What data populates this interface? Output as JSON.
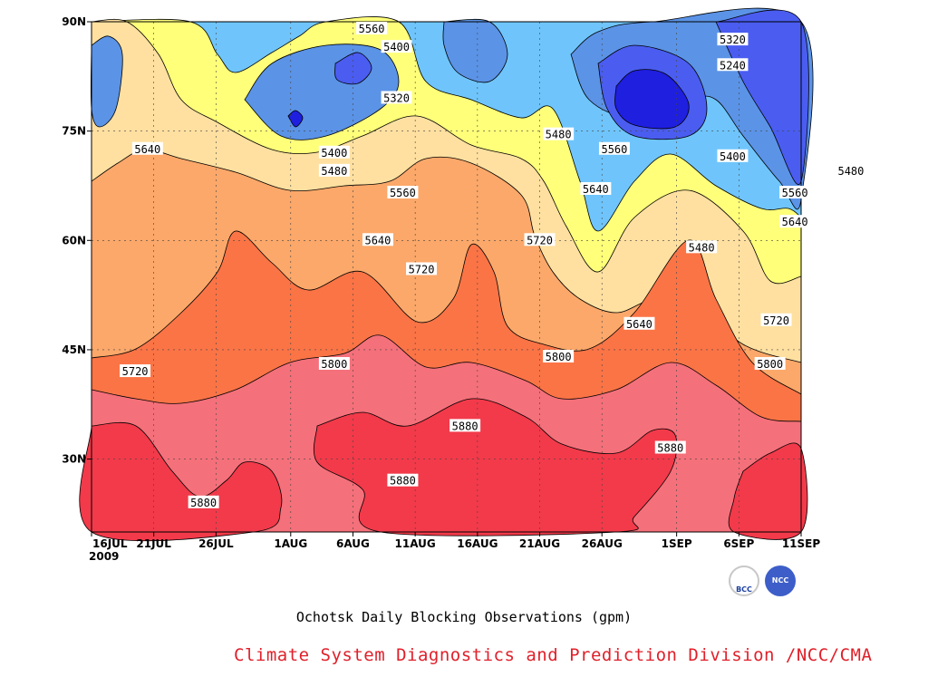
{
  "chart_data": {
    "type": "contour",
    "title": "Ochotsk Daily Blocking Observations (gpm)",
    "x_tick_labels": [
      "16JUL",
      "21JUL",
      "26JUL",
      "1AUG",
      "6AUG",
      "11AUG",
      "16AUG",
      "21AUG",
      "26AUG",
      "1SEP",
      "6SEP",
      "11SEP"
    ],
    "x_year_label": "2009",
    "y_tick_labels": [
      "90N",
      "75N",
      "60N",
      "45N",
      "30N"
    ],
    "x_range": [
      "2009-07-16",
      "2009-09-11"
    ],
    "y_range": [
      20,
      90
    ],
    "grid": true,
    "contour_levels": [
      5240,
      5320,
      5400,
      5480,
      5560,
      5640,
      5720,
      5800,
      5880
    ],
    "contour_labels": [
      {
        "text": "5560",
        "x": 22.5,
        "y": 89
      },
      {
        "text": "5400",
        "x": 24.5,
        "y": 86.5
      },
      {
        "text": "5320",
        "x": 24.5,
        "y": 79.5
      },
      {
        "text": "5400",
        "x": 19.5,
        "y": 72
      },
      {
        "text": "5480",
        "x": 19.5,
        "y": 69.5
      },
      {
        "text": "5560",
        "x": 25,
        "y": 66.5
      },
      {
        "text": "5640",
        "x": 4.5,
        "y": 72.5
      },
      {
        "text": "5640",
        "x": 23,
        "y": 60
      },
      {
        "text": "5720",
        "x": 26.5,
        "y": 56
      },
      {
        "text": "5720",
        "x": 36,
        "y": 60
      },
      {
        "text": "5480",
        "x": 37.5,
        "y": 74.5
      },
      {
        "text": "5560",
        "x": 42,
        "y": 72.5
      },
      {
        "text": "5640",
        "x": 40.5,
        "y": 67
      },
      {
        "text": "5320",
        "x": 51.5,
        "y": 87.5
      },
      {
        "text": "5240",
        "x": 51.5,
        "y": 84
      },
      {
        "text": "5400",
        "x": 51.5,
        "y": 71.5
      },
      {
        "text": "5480",
        "x": 61,
        "y": 69.5
      },
      {
        "text": "5560",
        "x": 56.5,
        "y": 66.5
      },
      {
        "text": "5640",
        "x": 56.5,
        "y": 62.5
      },
      {
        "text": "5480",
        "x": 49,
        "y": 59
      },
      {
        "text": "5640",
        "x": 44,
        "y": 48.5
      },
      {
        "text": "5720",
        "x": 55,
        "y": 49
      },
      {
        "text": "5720",
        "x": 3.5,
        "y": 42
      },
      {
        "text": "5800",
        "x": 19.5,
        "y": 43
      },
      {
        "text": "5800",
        "x": 37.5,
        "y": 44
      },
      {
        "text": "5800",
        "x": 54.5,
        "y": 43
      },
      {
        "text": "5880",
        "x": 30,
        "y": 34.5
      },
      {
        "text": "5880",
        "x": 25,
        "y": 27
      },
      {
        "text": "5880",
        "x": 46.5,
        "y": 31.5
      },
      {
        "text": "5880",
        "x": 9,
        "y": 24
      }
    ]
  },
  "band_colors": {
    "below_5240": "#1f1fe0",
    "5240_5320": "#4a5df0",
    "5320_5400": "#5b93e6",
    "5400_5480": "#6fc5fb",
    "5480_5560": "#ffff7a",
    "5560_5640": "#ffe0a0",
    "5640_5720": "#fba86a",
    "5720_5800": "#fb7446",
    "5800_5880": "#f4707a",
    "above_5880": "#f23a4a"
  },
  "footer": {
    "subtitle": "Ochotsk Daily Blocking Observations (gpm)",
    "credit": "Climate System Diagnostics and Prediction Division /NCC/CMA",
    "logo_left_text": "BCC",
    "logo_right_text": "NCC"
  }
}
